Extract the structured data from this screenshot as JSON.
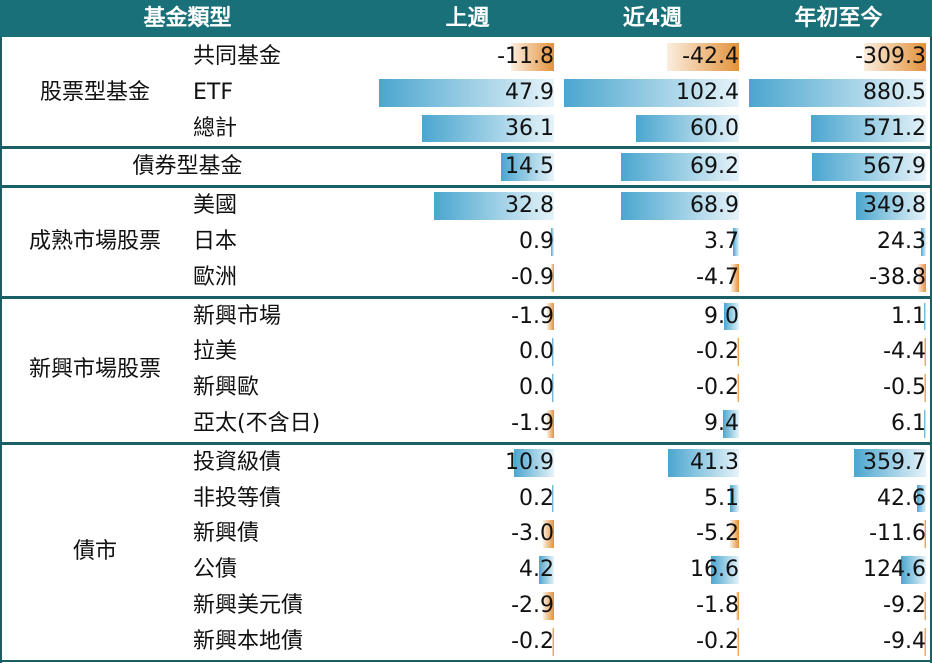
{
  "headers": {
    "fund_type": "基金類型",
    "week": "上週",
    "four_weeks": "近4週",
    "ytd": "年初至今"
  },
  "colors": {
    "header_bg": "#1a7078",
    "positive_bar": "#4ba6cf",
    "negative_bar": "#e2923a"
  },
  "chart_data": {
    "type": "table",
    "columns": [
      "上週",
      "近4週",
      "年初至今"
    ],
    "groups": [
      {
        "name": "股票型基金",
        "rows": [
          {
            "label": "共同基金",
            "values": [
              "-11.8",
              "-42.4",
              "-309.3"
            ]
          },
          {
            "label": "ETF",
            "values": [
              "47.9",
              "102.4",
              "880.5"
            ]
          },
          {
            "label": "總計",
            "values": [
              "36.1",
              "60.0",
              "571.2"
            ]
          }
        ]
      },
      {
        "name": "債券型基金",
        "rows": [
          {
            "label": "",
            "values": [
              "14.5",
              "69.2",
              "567.9"
            ]
          }
        ]
      },
      {
        "name": "成熟市場股票",
        "rows": [
          {
            "label": "美國",
            "values": [
              "32.8",
              "68.9",
              "349.8"
            ]
          },
          {
            "label": "日本",
            "values": [
              "0.9",
              "3.7",
              "24.3"
            ]
          },
          {
            "label": "歐洲",
            "values": [
              "-0.9",
              "-4.7",
              "-38.8"
            ]
          }
        ]
      },
      {
        "name": "新興市場股票",
        "rows": [
          {
            "label": "新興市場",
            "values": [
              "-1.9",
              "9.0",
              "1.1"
            ]
          },
          {
            "label": "拉美",
            "values": [
              "0.0",
              "-0.2",
              "-4.4"
            ]
          },
          {
            "label": "新興歐",
            "values": [
              "0.0",
              "-0.2",
              "-0.5"
            ]
          },
          {
            "label": "亞太(不含日)",
            "values": [
              "-1.9",
              "9.4",
              "6.1"
            ]
          }
        ]
      },
      {
        "name": "債市",
        "rows": [
          {
            "label": "投資級債",
            "values": [
              "10.9",
              "41.3",
              "359.7"
            ]
          },
          {
            "label": "非投等債",
            "values": [
              "0.2",
              "5.1",
              "42.6"
            ]
          },
          {
            "label": "新興債",
            "values": [
              "-3.0",
              "-5.2",
              "-11.6"
            ]
          },
          {
            "label": "公債",
            "values": [
              "4.2",
              "16.6",
              "124.6"
            ]
          },
          {
            "label": "新興美元債",
            "values": [
              "-2.9",
              "-1.8",
              "-9.2"
            ]
          },
          {
            "label": "新興本地債",
            "values": [
              "-0.2",
              "-0.2",
              "-9.4"
            ]
          }
        ]
      }
    ]
  }
}
